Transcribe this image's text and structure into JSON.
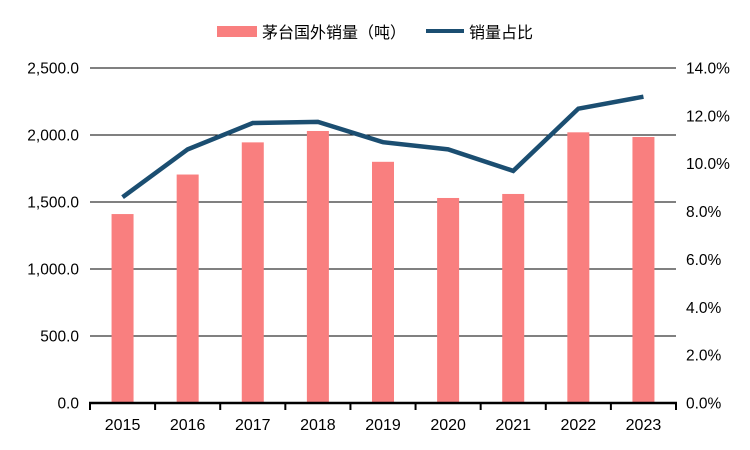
{
  "chart_data": {
    "type": "bar+line",
    "title": "",
    "categories": [
      "2015",
      "2016",
      "2017",
      "2018",
      "2019",
      "2020",
      "2021",
      "2022",
      "2023"
    ],
    "series": [
      {
        "name": "茅台国外销量（吨）",
        "type": "bar",
        "axis": "left",
        "color": "#F97F7F",
        "values": [
          1410,
          1705,
          1945,
          2030,
          1800,
          1530,
          1560,
          2020,
          1985
        ]
      },
      {
        "name": "销量占比",
        "type": "line",
        "axis": "right",
        "color": "#1B4E71",
        "values": [
          8.6,
          10.6,
          11.7,
          11.75,
          10.9,
          10.6,
          9.7,
          12.3,
          12.8
        ]
      }
    ],
    "left_axis": {
      "min": 0,
      "max": 2500,
      "step": 500,
      "tick_labels": [
        "0.0",
        "500.0",
        "1,000.0",
        "1,500.0",
        "2,000.0",
        "2,500.0"
      ]
    },
    "right_axis": {
      "min": 0,
      "max": 14,
      "step": 2,
      "unit": "%",
      "tick_labels": [
        "0.0%",
        "2.0%",
        "4.0%",
        "6.0%",
        "8.0%",
        "10.0%",
        "12.0%",
        "14.0%"
      ]
    },
    "grid": "horizontal gridlines at left-axis ticks",
    "legend_position": "top-center",
    "background": "#FFFFFF",
    "text_color": "#000000",
    "axis_color": "#000000"
  }
}
